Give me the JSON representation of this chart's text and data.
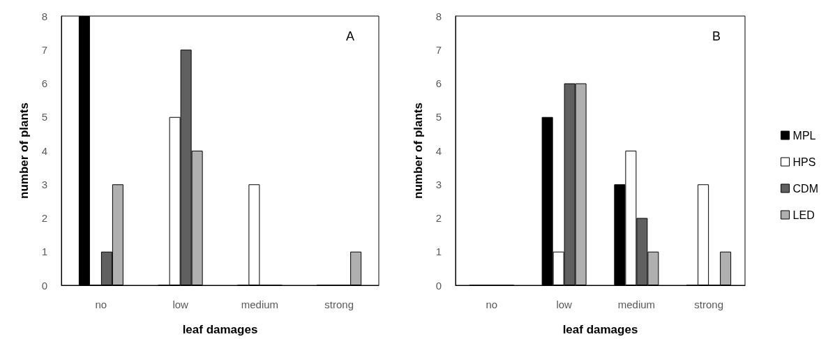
{
  "chart_data": [
    {
      "type": "bar",
      "categories": [
        "no",
        "low",
        "medium",
        "strong"
      ],
      "xlabel": "leaf damages",
      "ylabel": "number of plants",
      "ylim": [
        0,
        8
      ],
      "yticks": [
        0,
        1,
        2,
        3,
        4,
        5,
        6,
        7,
        8
      ],
      "grid": false,
      "legend": false,
      "annotations": [
        "A"
      ],
      "series": [
        {
          "color": "#000000",
          "values": [
            8,
            0,
            0,
            0
          ]
        },
        {
          "color": "#ffffff",
          "values": [
            0,
            5,
            3,
            0
          ]
        },
        {
          "color": "#606060",
          "values": [
            1,
            7,
            0,
            0
          ]
        },
        {
          "color": "#b0b0b0",
          "values": [
            3,
            4,
            0,
            1
          ]
        }
      ]
    },
    {
      "type": "bar",
      "categories": [
        "no",
        "low",
        "medium",
        "strong"
      ],
      "xlabel": "leaf damages",
      "ylabel": "number of plants",
      "ylim": [
        0,
        8
      ],
      "yticks": [
        0,
        1,
        2,
        3,
        4,
        5,
        6,
        7,
        8
      ],
      "grid": false,
      "legend": "right",
      "annotations": [
        "B"
      ],
      "series": [
        {
          "name": "MPL",
          "color": "#000000",
          "values": [
            0,
            5,
            3,
            0
          ]
        },
        {
          "name": "HPS",
          "color": "#ffffff",
          "values": [
            0,
            1,
            4,
            3
          ]
        },
        {
          "name": "CDM",
          "color": "#606060",
          "values": [
            0,
            6,
            2,
            0
          ]
        },
        {
          "name": "LED",
          "color": "#b0b0b0",
          "values": [
            0,
            6,
            1,
            1
          ]
        }
      ]
    }
  ]
}
